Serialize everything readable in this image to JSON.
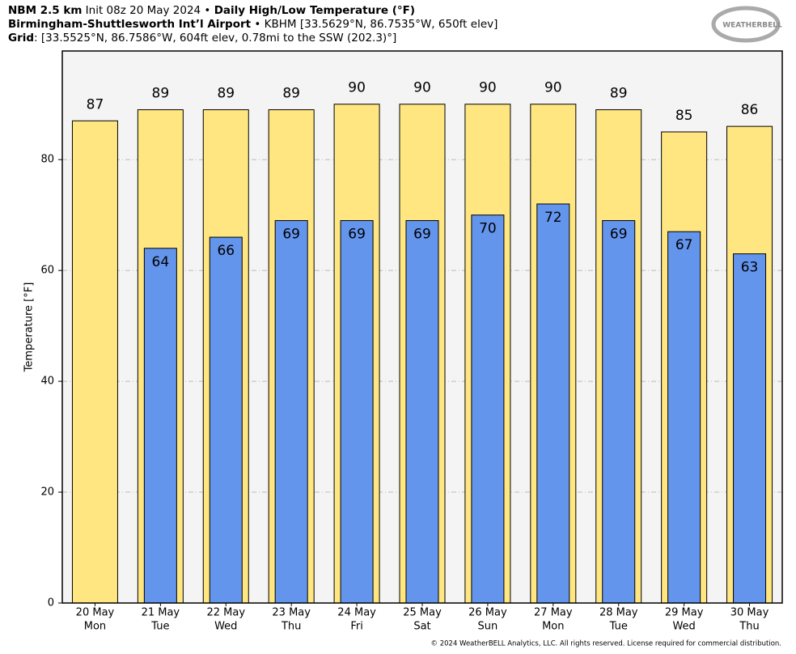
{
  "chart_data": {
    "type": "bar",
    "header": [
      [
        {
          "text": "NBM 2.5 km",
          "bold": true
        },
        {
          "text": " Init 08z 20 May 2024 • ",
          "bold": false
        },
        {
          "text": "Daily High/Low Temperature (°F)",
          "bold": true
        }
      ],
      [
        {
          "text": "Birmingham-Shuttlesworth Int’l Airport",
          "bold": true
        },
        {
          "text": " • KBHM [33.5629°N, 86.7535°W, 650ft elev]",
          "bold": false
        }
      ],
      [
        {
          "text": "Grid",
          "bold": true
        },
        {
          "text": ": [33.5525°N, 86.7586°W, 604ft elev, 0.78mi to the SSW (202.3)°]",
          "bold": false
        }
      ]
    ],
    "logo": "WEATHERBELL",
    "footer": "© 2024 WeatherBELL Analytics, LLC. All rights reserved. License required for commercial distribution.",
    "ylabel": "Temperature [°F]",
    "categories": [
      "20 May",
      "21 May",
      "22 May",
      "23 May",
      "24 May",
      "25 May",
      "26 May",
      "27 May",
      "28 May",
      "29 May",
      "30 May"
    ],
    "weekdays": [
      "Mon",
      "Tue",
      "Wed",
      "Thu",
      "Fri",
      "Sat",
      "Sun",
      "Mon",
      "Tue",
      "Wed",
      "Thu"
    ],
    "series": [
      {
        "color": "#ffe680",
        "values": [
          87,
          89,
          89,
          89,
          90,
          90,
          90,
          90,
          89,
          85,
          86
        ]
      },
      {
        "color": "#6495ed",
        "values": [
          null,
          64,
          66,
          69,
          69,
          69,
          70,
          72,
          69,
          67,
          63
        ]
      }
    ],
    "ylim": [
      0,
      99.6
    ],
    "yticks": [
      0,
      20,
      40,
      60,
      80
    ],
    "grid": true
  }
}
